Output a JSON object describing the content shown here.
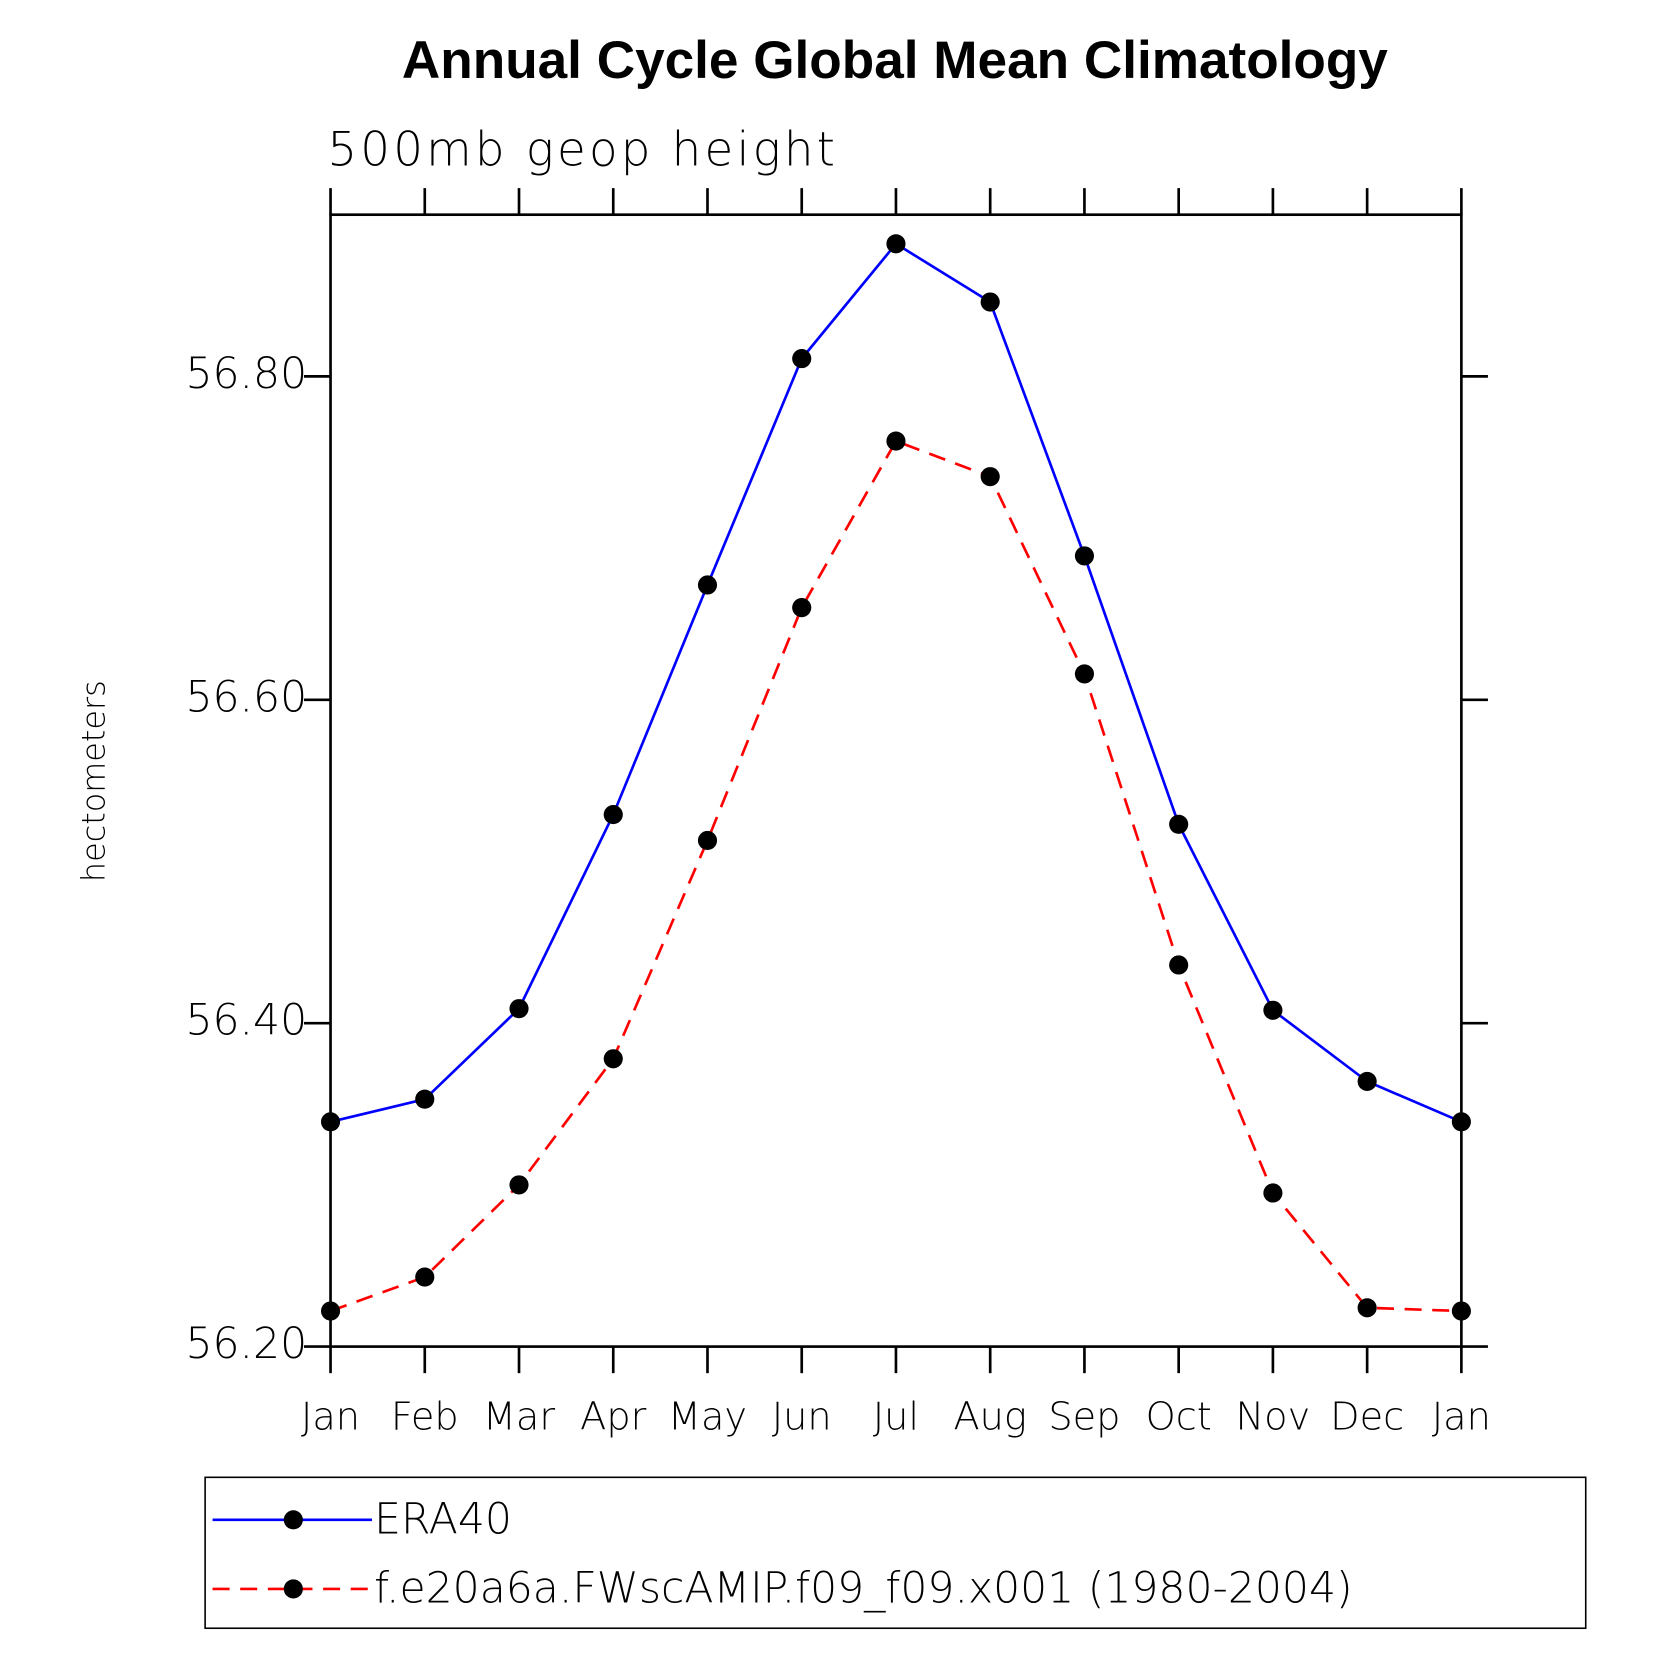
{
  "chart_data": {
    "type": "line",
    "title": "Annual Cycle Global Mean Climatology",
    "subtitle": "500mb geop height",
    "y_label": "hectometers",
    "categories": [
      "Jan",
      "Feb",
      "Mar",
      "Apr",
      "May",
      "Jun",
      "Jul",
      "Aug",
      "Sep",
      "Oct",
      "Nov",
      "Dec",
      "Jan"
    ],
    "series": [
      {
        "name": "ERA40",
        "color": "#0000ff",
        "dashed": false,
        "values": [
          56.339,
          56.353,
          56.409,
          56.529,
          56.671,
          56.811,
          56.882,
          56.846,
          56.689,
          56.523,
          56.408,
          56.364,
          56.339
        ]
      },
      {
        "name": "f.e20a6a.FWscAMIP.f09_f09.x001 (1980-2004)",
        "color": "#ff0000",
        "dashed": true,
        "values": [
          56.222,
          56.243,
          56.3,
          56.378,
          56.513,
          56.657,
          56.76,
          56.738,
          56.616,
          56.436,
          56.295,
          56.224,
          56.222
        ]
      }
    ],
    "ylim": [
      56.2,
      56.9
    ],
    "yticks": [
      {
        "value": 56.2,
        "label": "56.20"
      },
      {
        "value": 56.4,
        "label": "56.40"
      },
      {
        "value": 56.6,
        "label": "56.60"
      },
      {
        "value": 56.8,
        "label": "56.80"
      }
    ],
    "marker_color": "#000000",
    "legend": "bottom"
  }
}
